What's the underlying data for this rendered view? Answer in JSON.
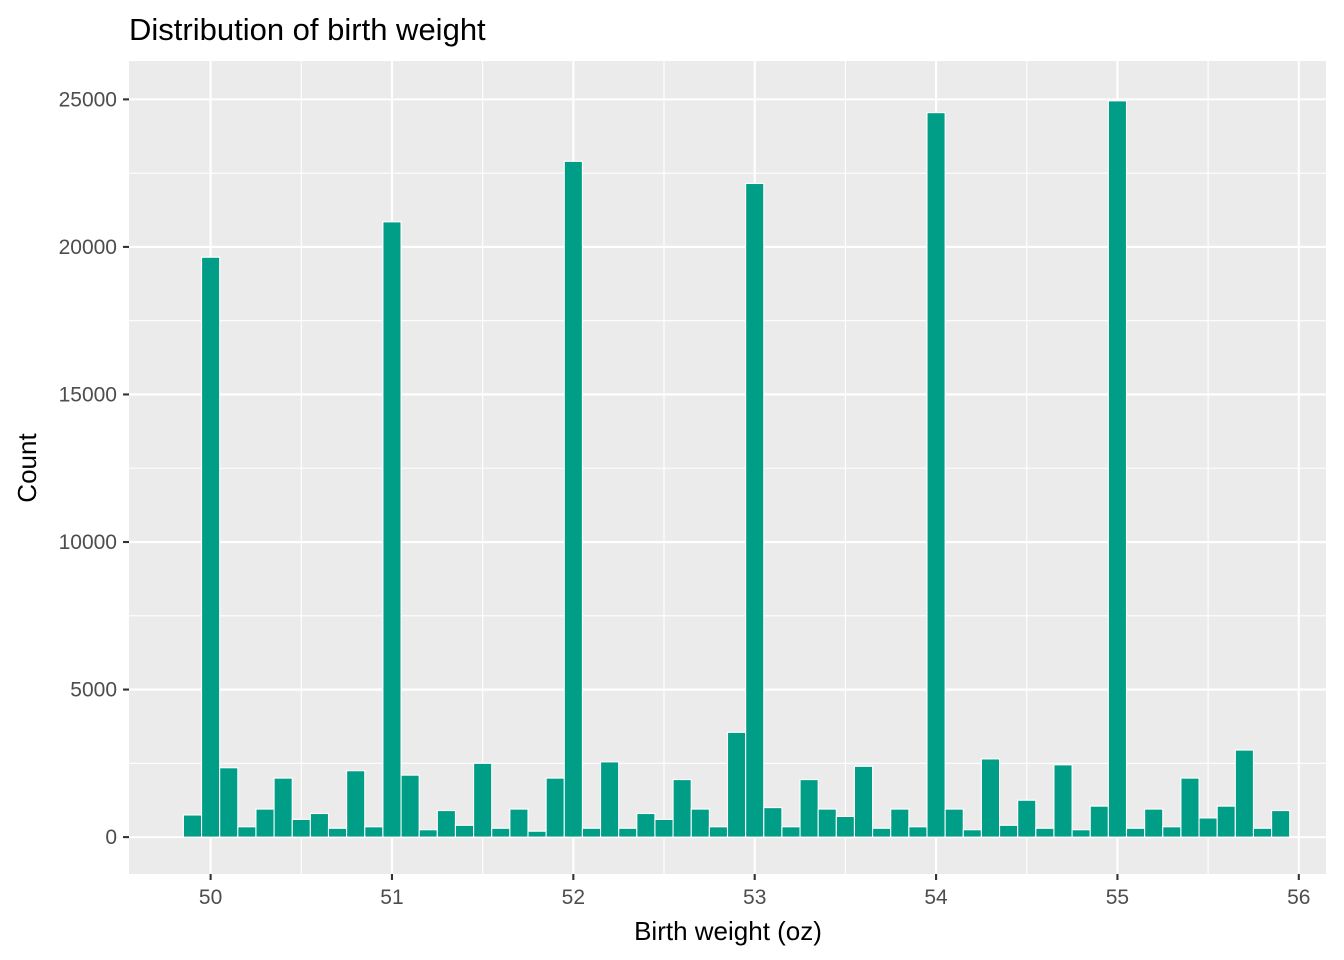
{
  "chart_data": {
    "type": "bar",
    "title": "Distribution of birth weight",
    "xlabel": "Birth weight (oz)",
    "ylabel": "Count",
    "x_ticks": [
      "50",
      "51",
      "52",
      "53",
      "54",
      "55",
      "56"
    ],
    "y_ticks": [
      "0",
      "5000",
      "10000",
      "15000",
      "20000",
      "25000"
    ],
    "xlim": [
      49.55,
      56.15
    ],
    "ylim": [
      -1250,
      26300
    ],
    "bin_width": 0.1,
    "grid": true,
    "colors": {
      "bar_fill": "#009E86",
      "bar_outline": "#FFFFFF",
      "panel_background": "#EBEBEB",
      "grid_line": "#FFFFFF",
      "tick_label": "#4D4D4D",
      "text": "#000000"
    },
    "x": [
      49.9,
      50.0,
      50.1,
      50.2,
      50.3,
      50.4,
      50.5,
      50.6,
      50.7,
      50.8,
      50.9,
      51.0,
      51.1,
      51.2,
      51.3,
      51.4,
      51.5,
      51.6,
      51.7,
      51.8,
      51.9,
      52.0,
      52.1,
      52.2,
      52.3,
      52.4,
      52.5,
      52.6,
      52.7,
      52.8,
      52.9,
      53.0,
      53.1,
      53.2,
      53.3,
      53.4,
      53.5,
      53.6,
      53.7,
      53.8,
      53.9,
      54.0,
      54.1,
      54.2,
      54.3,
      54.4,
      54.5,
      54.6,
      54.7,
      54.8,
      54.9,
      55.0,
      55.1,
      55.2,
      55.3,
      55.4,
      55.5,
      55.6,
      55.7,
      55.8,
      55.9
    ],
    "values": [
      750,
      19650,
      2350,
      350,
      950,
      2000,
      600,
      800,
      300,
      2250,
      350,
      20850,
      2100,
      250,
      900,
      400,
      2500,
      300,
      950,
      200,
      2000,
      22900,
      300,
      2550,
      300,
      800,
      600,
      1950,
      950,
      350,
      3550,
      22150,
      1000,
      350,
      1950,
      950,
      700,
      2400,
      300,
      950,
      350,
      24550,
      950,
      250,
      2650,
      400,
      1250,
      300,
      2450,
      250,
      1050,
      24950,
      300,
      950,
      350,
      2000,
      650,
      1050,
      2950,
      300,
      900
    ]
  }
}
